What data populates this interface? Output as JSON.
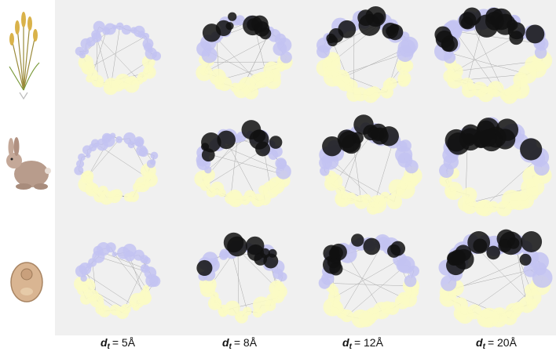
{
  "columns": [
    {
      "symbol": "d",
      "subscript": "t",
      "text": "= 5Å"
    },
    {
      "symbol": "d",
      "subscript": "t",
      "text": "= 8Å"
    },
    {
      "symbol": "d",
      "subscript": "t",
      "text": "= 12Å"
    },
    {
      "symbol": "d",
      "subscript": "t",
      "text": "= 20Å"
    }
  ]
}
